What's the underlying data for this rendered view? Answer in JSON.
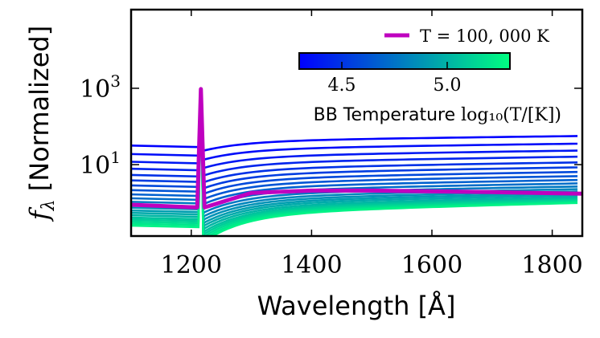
{
  "chart_data": {
    "type": "line",
    "title": "",
    "xlabel": "Wavelength [Å]",
    "ylabel_symbol": "f",
    "ylabel_subscript": "λ",
    "ylabel_text": "[Normalized]",
    "xlim": [
      1100,
      1850
    ],
    "ylim_log10": [
      -0.87,
      5.06
    ],
    "yscale": "log",
    "x_ticks": [
      1200,
      1400,
      1600,
      1800
    ],
    "x_tick_labels": [
      "1200",
      "1400",
      "1600",
      "1800"
    ],
    "y_ticks_log10": [
      1,
      3
    ],
    "y_tick_labels": [
      {
        "base": "10",
        "exp": "1"
      },
      {
        "base": "10",
        "exp": "3"
      }
    ],
    "lya_wavelength": 1216,
    "lya_peak_log10": 2.98,
    "colorbar": {
      "label_prefix": "BB Temperature ",
      "label_math": "log₁₀(T/[K])",
      "range_log10T": [
        4.3,
        5.35
      ],
      "ticks": [
        4.5,
        5.0
      ],
      "tick_labels": [
        "4.5",
        "5.0"
      ],
      "colormap": "winter",
      "color_low": "#0000ff",
      "color_high": "#00ff80"
    },
    "legend": {
      "position": "top-right",
      "entries": [
        {
          "label": "T = 100, 000 K",
          "color": "#bf00bf"
        }
      ]
    },
    "series_family": {
      "description": "Blackbody continua normalized, colored by log10(T); cooler curves (blue) lie higher",
      "log10T_values": [
        4.3,
        4.35,
        4.4,
        4.45,
        4.5,
        4.55,
        4.6,
        4.65,
        4.7,
        4.75,
        4.8,
        4.85,
        4.9,
        4.95,
        5.0,
        5.05,
        5.1,
        5.15,
        5.2,
        5.25,
        5.3
      ],
      "log10_flux_at_1100": [
        1.5,
        1.28,
        1.08,
        0.9,
        0.74,
        0.6,
        0.47,
        0.35,
        0.24,
        0.14,
        0.05,
        -0.03,
        -0.1,
        -0.17,
        -0.23,
        -0.29,
        -0.35,
        -0.4,
        -0.45,
        -0.5,
        -0.55
      ],
      "log10_flux_at_1850": [
        1.75,
        1.55,
        1.37,
        1.21,
        1.06,
        0.93,
        0.81,
        0.7,
        0.6,
        0.51,
        0.43,
        0.36,
        0.3,
        0.25,
        0.2,
        0.15,
        0.11,
        0.08,
        0.05,
        0.02,
        0.0
      ]
    },
    "highlight_series": {
      "name": "T = 100, 000 K",
      "color": "#bf00bf",
      "x": [
        1100,
        1210,
        1216,
        1222,
        1300,
        1400,
        1500,
        1600,
        1700,
        1850
      ],
      "log10_y": [
        -0.05,
        -0.12,
        2.98,
        -0.12,
        0.26,
        0.32,
        0.32,
        0.3,
        0.28,
        0.24
      ]
    }
  }
}
